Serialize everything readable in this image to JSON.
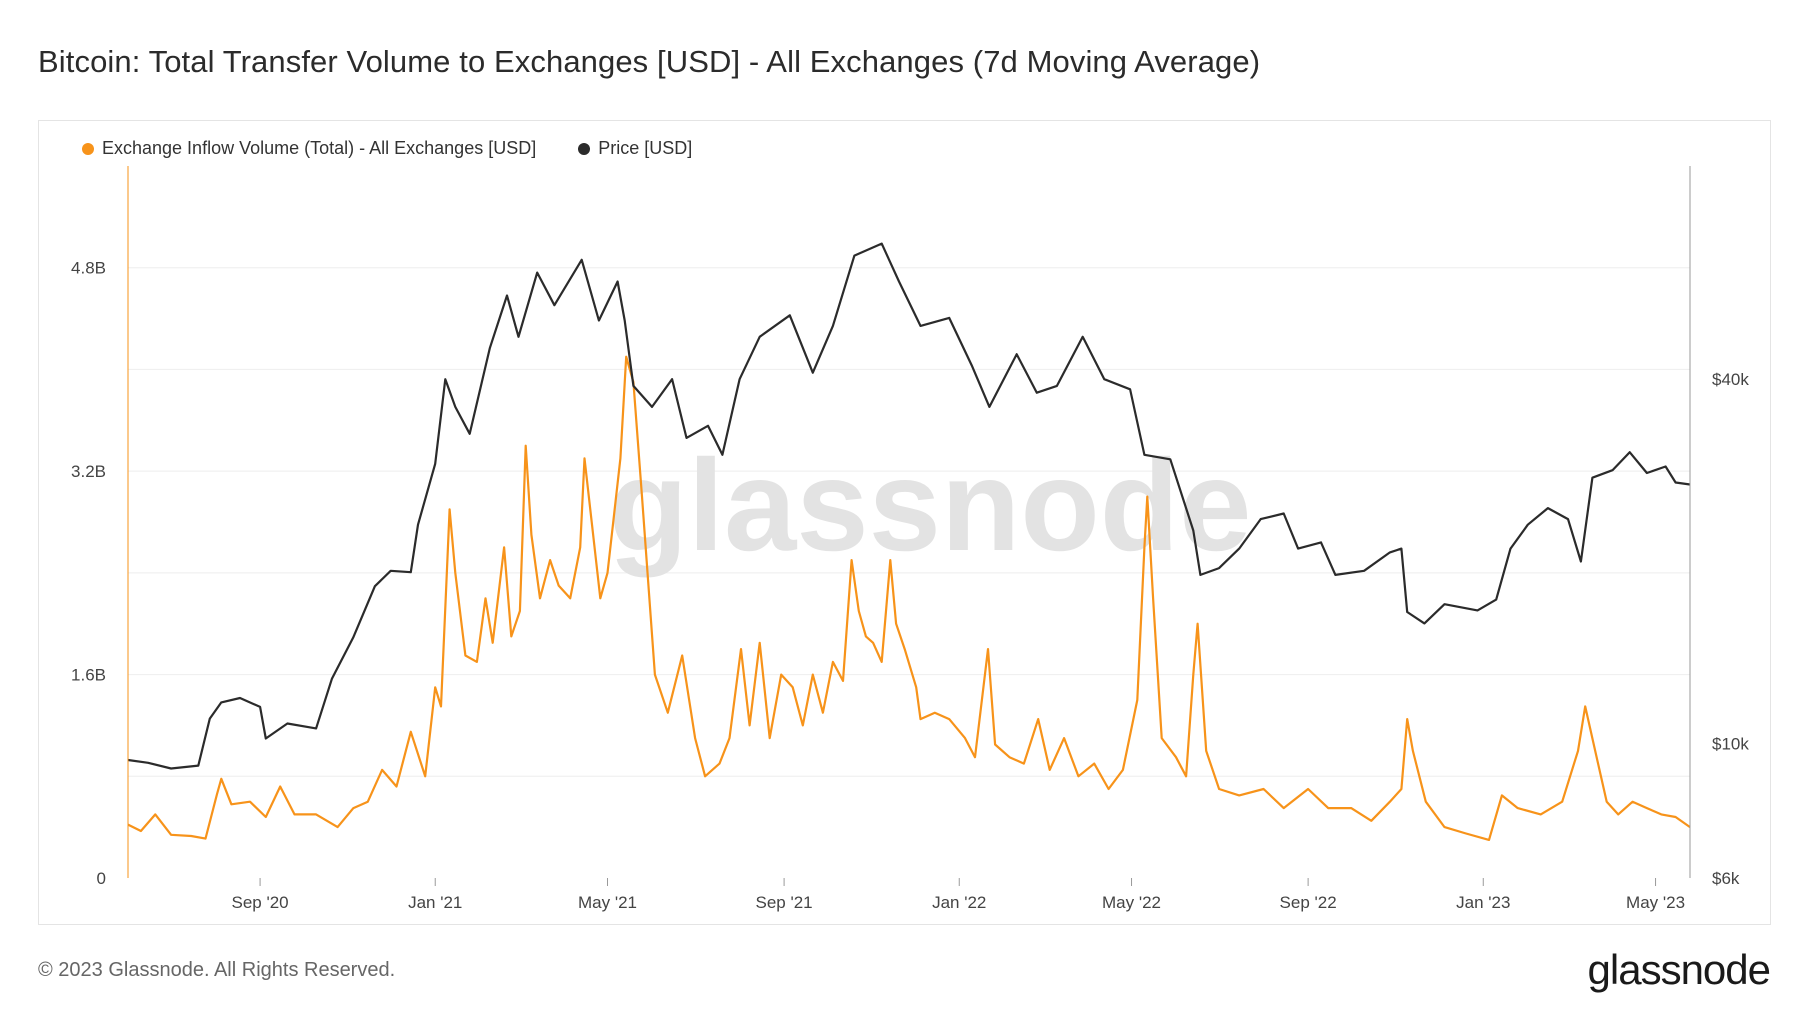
{
  "title": "Bitcoin: Total Transfer Volume to Exchanges [USD] - All Exchanges (7d Moving Average)",
  "footer": "© 2023 Glassnode. All Rights Reserved.",
  "logo": "glassnode",
  "watermark": "glassnode",
  "colors": {
    "inflow": "#f7931a",
    "price": "#2b2b2b",
    "grid": "#eeeeee",
    "axis": "#d5d5d5"
  },
  "chart_data": {
    "type": "line",
    "title": "Bitcoin: Total Transfer Volume to Exchanges [USD] - All Exchanges (7d Moving Average)",
    "grid": true,
    "legend_position": "top-left",
    "x_range": [
      "2020-06-01",
      "2023-05-25"
    ],
    "x_ticks": [
      {
        "date": "2020-09-01",
        "label": "Sep '20"
      },
      {
        "date": "2021-01-01",
        "label": "Jan '21"
      },
      {
        "date": "2021-05-01",
        "label": "May '21"
      },
      {
        "date": "2021-09-01",
        "label": "Sep '21"
      },
      {
        "date": "2022-01-01",
        "label": "Jan '22"
      },
      {
        "date": "2022-05-01",
        "label": "May '22"
      },
      {
        "date": "2022-09-01",
        "label": "Sep '22"
      },
      {
        "date": "2023-01-01",
        "label": "Jan '23"
      },
      {
        "date": "2023-05-01",
        "label": "May '23"
      }
    ],
    "y_left": {
      "range": [
        0,
        5.6
      ],
      "unit": "B",
      "ticks": [
        {
          "value": 0,
          "label": "0"
        },
        {
          "value": 1.6,
          "label": "1.6B"
        },
        {
          "value": 3.2,
          "label": "3.2B"
        },
        {
          "value": 4.8,
          "label": "4.8B"
        }
      ]
    },
    "y_right": {
      "scale": "log",
      "range": [
        6000,
        90000
      ],
      "ticks": [
        {
          "value": 6000,
          "label": "$6k"
        },
        {
          "value": 10000,
          "label": "$10k"
        },
        {
          "value": 40000,
          "label": "$40k"
        }
      ]
    },
    "series": [
      {
        "name": "Exchange Inflow Volume (Total) - All Exchanges [USD]",
        "axis": "left",
        "points": [
          [
            "2020-06-01",
            0.42
          ],
          [
            "2020-06-10",
            0.37
          ],
          [
            "2020-06-20",
            0.5
          ],
          [
            "2020-07-01",
            0.34
          ],
          [
            "2020-07-15",
            0.33
          ],
          [
            "2020-07-25",
            0.31
          ],
          [
            "2020-08-02",
            0.66
          ],
          [
            "2020-08-05",
            0.78
          ],
          [
            "2020-08-12",
            0.58
          ],
          [
            "2020-08-25",
            0.6
          ],
          [
            "2020-09-05",
            0.48
          ],
          [
            "2020-09-15",
            0.72
          ],
          [
            "2020-09-25",
            0.5
          ],
          [
            "2020-10-10",
            0.5
          ],
          [
            "2020-10-25",
            0.4
          ],
          [
            "2020-11-05",
            0.55
          ],
          [
            "2020-11-15",
            0.6
          ],
          [
            "2020-11-25",
            0.85
          ],
          [
            "2020-12-05",
            0.72
          ],
          [
            "2020-12-15",
            1.15
          ],
          [
            "2020-12-25",
            0.8
          ],
          [
            "2021-01-01",
            1.5
          ],
          [
            "2021-01-05",
            1.35
          ],
          [
            "2021-01-11",
            2.9
          ],
          [
            "2021-01-15",
            2.4
          ],
          [
            "2021-01-22",
            1.75
          ],
          [
            "2021-01-30",
            1.7
          ],
          [
            "2021-02-05",
            2.2
          ],
          [
            "2021-02-10",
            1.85
          ],
          [
            "2021-02-18",
            2.6
          ],
          [
            "2021-02-23",
            1.9
          ],
          [
            "2021-03-01",
            2.1
          ],
          [
            "2021-03-05",
            3.4
          ],
          [
            "2021-03-09",
            2.7
          ],
          [
            "2021-03-15",
            2.2
          ],
          [
            "2021-03-22",
            2.5
          ],
          [
            "2021-03-28",
            2.3
          ],
          [
            "2021-04-05",
            2.2
          ],
          [
            "2021-04-12",
            2.6
          ],
          [
            "2021-04-15",
            3.3
          ],
          [
            "2021-04-20",
            2.8
          ],
          [
            "2021-04-26",
            2.2
          ],
          [
            "2021-05-01",
            2.4
          ],
          [
            "2021-05-10",
            3.3
          ],
          [
            "2021-05-14",
            4.1
          ],
          [
            "2021-05-19",
            3.9
          ],
          [
            "2021-05-25",
            3.0
          ],
          [
            "2021-06-03",
            1.6
          ],
          [
            "2021-06-12",
            1.3
          ],
          [
            "2021-06-22",
            1.75
          ],
          [
            "2021-07-01",
            1.1
          ],
          [
            "2021-07-08",
            0.8
          ],
          [
            "2021-07-18",
            0.9
          ],
          [
            "2021-07-25",
            1.1
          ],
          [
            "2021-08-02",
            1.8
          ],
          [
            "2021-08-08",
            1.2
          ],
          [
            "2021-08-15",
            1.85
          ],
          [
            "2021-08-22",
            1.1
          ],
          [
            "2021-08-30",
            1.6
          ],
          [
            "2021-09-07",
            1.5
          ],
          [
            "2021-09-14",
            1.2
          ],
          [
            "2021-09-21",
            1.6
          ],
          [
            "2021-09-28",
            1.3
          ],
          [
            "2021-10-05",
            1.7
          ],
          [
            "2021-10-12",
            1.55
          ],
          [
            "2021-10-18",
            2.5
          ],
          [
            "2021-10-23",
            2.1
          ],
          [
            "2021-10-28",
            1.9
          ],
          [
            "2021-11-02",
            1.85
          ],
          [
            "2021-11-08",
            1.7
          ],
          [
            "2021-11-14",
            2.5
          ],
          [
            "2021-11-18",
            2.0
          ],
          [
            "2021-11-24",
            1.8
          ],
          [
            "2021-12-02",
            1.5
          ],
          [
            "2021-12-05",
            1.25
          ],
          [
            "2021-12-15",
            1.3
          ],
          [
            "2021-12-25",
            1.25
          ],
          [
            "2022-01-05",
            1.1
          ],
          [
            "2022-01-12",
            0.95
          ],
          [
            "2022-01-21",
            1.8
          ],
          [
            "2022-01-26",
            1.05
          ],
          [
            "2022-02-05",
            0.95
          ],
          [
            "2022-02-15",
            0.9
          ],
          [
            "2022-02-25",
            1.25
          ],
          [
            "2022-03-05",
            0.85
          ],
          [
            "2022-03-15",
            1.1
          ],
          [
            "2022-03-25",
            0.8
          ],
          [
            "2022-04-05",
            0.9
          ],
          [
            "2022-04-15",
            0.7
          ],
          [
            "2022-04-25",
            0.85
          ],
          [
            "2022-05-05",
            1.4
          ],
          [
            "2022-05-10",
            2.6
          ],
          [
            "2022-05-12",
            3.0
          ],
          [
            "2022-05-16",
            2.2
          ],
          [
            "2022-05-22",
            1.1
          ],
          [
            "2022-06-01",
            0.95
          ],
          [
            "2022-06-08",
            0.8
          ],
          [
            "2022-06-13",
            1.6
          ],
          [
            "2022-06-16",
            2.0
          ],
          [
            "2022-06-22",
            1.0
          ],
          [
            "2022-07-01",
            0.7
          ],
          [
            "2022-07-15",
            0.65
          ],
          [
            "2022-08-01",
            0.7
          ],
          [
            "2022-08-15",
            0.55
          ],
          [
            "2022-09-01",
            0.7
          ],
          [
            "2022-09-15",
            0.55
          ],
          [
            "2022-10-01",
            0.55
          ],
          [
            "2022-10-15",
            0.45
          ],
          [
            "2022-10-28",
            0.6
          ],
          [
            "2022-11-05",
            0.7
          ],
          [
            "2022-11-09",
            1.25
          ],
          [
            "2022-11-13",
            1.0
          ],
          [
            "2022-11-22",
            0.6
          ],
          [
            "2022-12-05",
            0.4
          ],
          [
            "2022-12-20",
            0.35
          ],
          [
            "2023-01-05",
            0.3
          ],
          [
            "2023-01-14",
            0.65
          ],
          [
            "2023-01-25",
            0.55
          ],
          [
            "2023-02-10",
            0.5
          ],
          [
            "2023-02-25",
            0.6
          ],
          [
            "2023-03-08",
            1.0
          ],
          [
            "2023-03-13",
            1.35
          ],
          [
            "2023-03-20",
            1.0
          ],
          [
            "2023-03-28",
            0.6
          ],
          [
            "2023-04-05",
            0.5
          ],
          [
            "2023-04-15",
            0.6
          ],
          [
            "2023-04-25",
            0.55
          ],
          [
            "2023-05-05",
            0.5
          ],
          [
            "2023-05-15",
            0.48
          ],
          [
            "2023-05-25",
            0.4
          ]
        ]
      },
      {
        "name": "Price [USD]",
        "axis": "right",
        "points": [
          [
            "2020-06-01",
            9400
          ],
          [
            "2020-06-15",
            9300
          ],
          [
            "2020-07-01",
            9100
          ],
          [
            "2020-07-20",
            9200
          ],
          [
            "2020-07-28",
            11000
          ],
          [
            "2020-08-05",
            11700
          ],
          [
            "2020-08-18",
            11900
          ],
          [
            "2020-09-01",
            11500
          ],
          [
            "2020-09-05",
            10200
          ],
          [
            "2020-09-20",
            10800
          ],
          [
            "2020-10-10",
            10600
          ],
          [
            "2020-10-21",
            12800
          ],
          [
            "2020-11-05",
            15000
          ],
          [
            "2020-11-20",
            18200
          ],
          [
            "2020-12-01",
            19300
          ],
          [
            "2020-12-15",
            19200
          ],
          [
            "2020-12-20",
            23000
          ],
          [
            "2021-01-01",
            29000
          ],
          [
            "2021-01-08",
            40000
          ],
          [
            "2021-01-15",
            36000
          ],
          [
            "2021-01-25",
            32500
          ],
          [
            "2021-02-08",
            45000
          ],
          [
            "2021-02-20",
            55000
          ],
          [
            "2021-02-28",
            47000
          ],
          [
            "2021-03-13",
            60000
          ],
          [
            "2021-03-25",
            53000
          ],
          [
            "2021-04-13",
            63000
          ],
          [
            "2021-04-25",
            50000
          ],
          [
            "2021-05-08",
            58000
          ],
          [
            "2021-05-13",
            50000
          ],
          [
            "2021-05-19",
            39000
          ],
          [
            "2021-06-01",
            36000
          ],
          [
            "2021-06-15",
            40000
          ],
          [
            "2021-06-25",
            32000
          ],
          [
            "2021-07-10",
            33500
          ],
          [
            "2021-07-20",
            30000
          ],
          [
            "2021-08-01",
            40000
          ],
          [
            "2021-08-15",
            47000
          ],
          [
            "2021-09-05",
            51000
          ],
          [
            "2021-09-21",
            41000
          ],
          [
            "2021-10-05",
            49000
          ],
          [
            "2021-10-20",
            64000
          ],
          [
            "2021-11-08",
            67000
          ],
          [
            "2021-11-20",
            58000
          ],
          [
            "2021-12-05",
            49000
          ],
          [
            "2021-12-25",
            50500
          ],
          [
            "2022-01-10",
            42000
          ],
          [
            "2022-01-22",
            36000
          ],
          [
            "2022-02-10",
            44000
          ],
          [
            "2022-02-24",
            38000
          ],
          [
            "2022-03-10",
            39000
          ],
          [
            "2022-03-28",
            47000
          ],
          [
            "2022-04-12",
            40000
          ],
          [
            "2022-04-30",
            38500
          ],
          [
            "2022-05-10",
            30000
          ],
          [
            "2022-05-28",
            29500
          ],
          [
            "2022-06-13",
            22500
          ],
          [
            "2022-06-18",
            19000
          ],
          [
            "2022-07-01",
            19500
          ],
          [
            "2022-07-15",
            21000
          ],
          [
            "2022-07-30",
            23500
          ],
          [
            "2022-08-15",
            24000
          ],
          [
            "2022-08-25",
            21000
          ],
          [
            "2022-09-10",
            21500
          ],
          [
            "2022-09-20",
            19000
          ],
          [
            "2022-10-10",
            19300
          ],
          [
            "2022-10-28",
            20700
          ],
          [
            "2022-11-05",
            21000
          ],
          [
            "2022-11-09",
            16500
          ],
          [
            "2022-11-21",
            15800
          ],
          [
            "2022-12-05",
            17000
          ],
          [
            "2022-12-28",
            16600
          ],
          [
            "2023-01-10",
            17300
          ],
          [
            "2023-01-20",
            21000
          ],
          [
            "2023-02-01",
            23000
          ],
          [
            "2023-02-15",
            24500
          ],
          [
            "2023-03-01",
            23500
          ],
          [
            "2023-03-10",
            20000
          ],
          [
            "2023-03-18",
            27500
          ],
          [
            "2023-04-01",
            28300
          ],
          [
            "2023-04-13",
            30300
          ],
          [
            "2023-04-25",
            28000
          ],
          [
            "2023-05-08",
            28700
          ],
          [
            "2023-05-15",
            27000
          ],
          [
            "2023-05-25",
            26800
          ]
        ]
      }
    ]
  }
}
